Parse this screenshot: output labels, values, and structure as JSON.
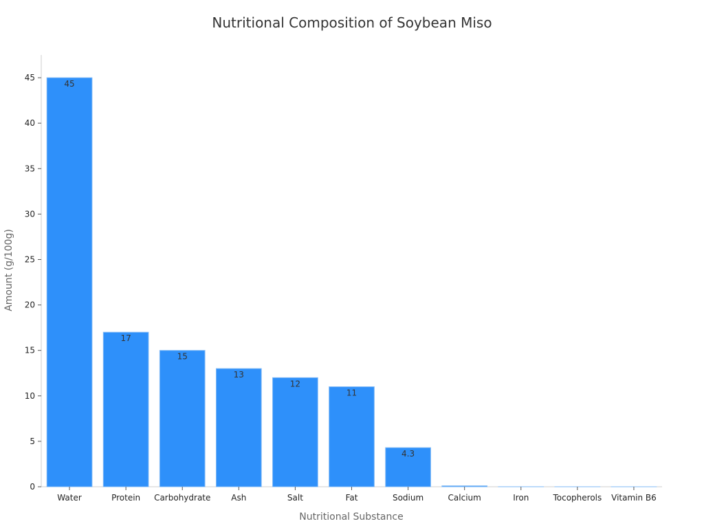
{
  "chart_data": {
    "type": "bar",
    "title": "Nutritional Composition of Soybean Miso",
    "xlabel": "Nutritional Substance",
    "ylabel": "Amount (g/100g)",
    "categories": [
      "Water",
      "Protein",
      "Carbohydrate",
      "Ash",
      "Salt",
      "Fat",
      "Sodium",
      "Calcium",
      "Iron",
      "Tocopherols",
      "Vitamin B6"
    ],
    "values": [
      45,
      17,
      15,
      13,
      12,
      11,
      4.3,
      0.1,
      0.004,
      0.0011,
      0.0001
    ],
    "data_labels": [
      "45",
      "17",
      "15",
      "13",
      "12",
      "11",
      "4.3",
      "",
      "",
      "",
      ""
    ],
    "ylim": [
      0,
      47.5
    ],
    "yticks": [
      0,
      5,
      10,
      15,
      20,
      25,
      30,
      35,
      40,
      45
    ],
    "grid": false,
    "legend": "none",
    "colors": {
      "bar_fill": "#2E90FA",
      "bar_stroke": "#7FB8F5",
      "axis": "#CCCCCC",
      "title": "#333333",
      "axis_label": "#666666",
      "tick": "#222222"
    }
  }
}
